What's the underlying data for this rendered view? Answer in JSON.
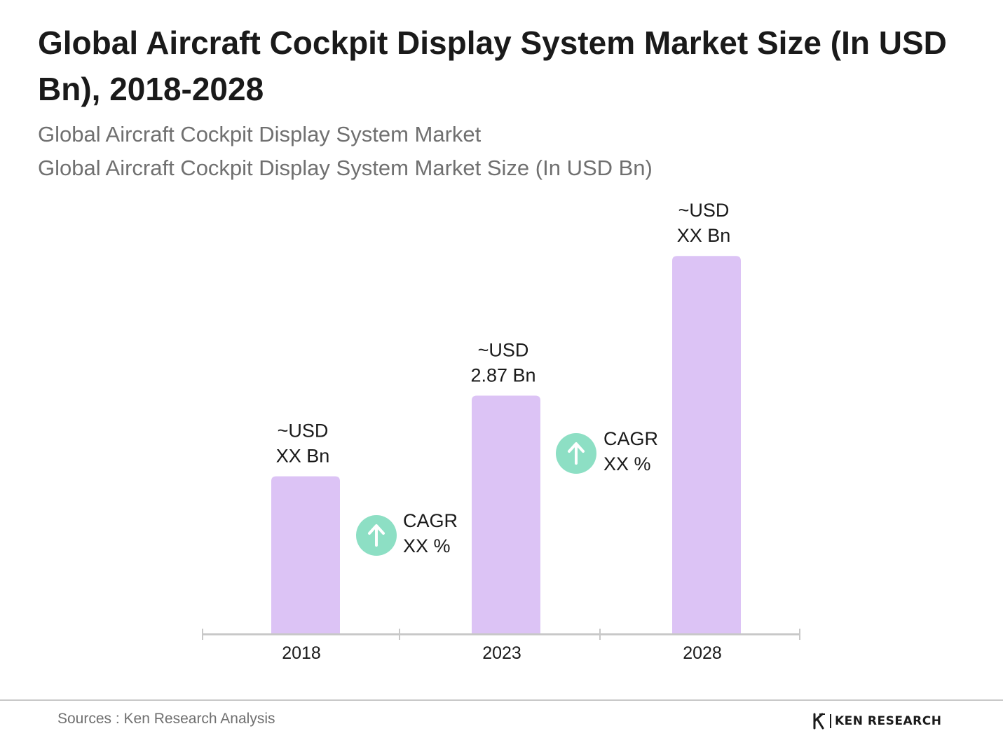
{
  "title": "Global Aircraft Cockpit Display System Market Size (In USD Bn), 2018-2028",
  "subtitles": [
    "Global Aircraft Cockpit Display System Market",
    "Global Aircraft Cockpit Display System Market Size (In USD Bn)"
  ],
  "chart_data": {
    "type": "bar",
    "categories": [
      "2018",
      "2023",
      "2028"
    ],
    "values": [
      1.9,
      2.87,
      4.55
    ],
    "value_labels": [
      [
        "~USD",
        "XX Bn"
      ],
      [
        "~USD",
        "2.87 Bn"
      ],
      [
        "~USD",
        "XX Bn"
      ]
    ],
    "annotations": [
      {
        "between": [
          "2018",
          "2023"
        ],
        "lines": [
          "CAGR",
          "XX %"
        ],
        "icon": "up-arrow-icon"
      },
      {
        "between": [
          "2023",
          "2028"
        ],
        "lines": [
          "CAGR",
          "XX %"
        ],
        "icon": "up-arrow-icon"
      }
    ],
    "xlabel": "",
    "ylabel": "",
    "ylim": [
      0,
      5.1
    ],
    "grid": false,
    "legend": "none"
  },
  "colors": {
    "bar": "#dcc3f5",
    "axis": "#c8c8c8",
    "cagr_circle": "#8ddfc4",
    "cagr_arrow": "#ffffff",
    "title": "#1a1a1a",
    "subtitle": "#707070"
  },
  "footer": {
    "source": "Sources : Ken Research Analysis",
    "brand": "KEN RESEARCH"
  }
}
